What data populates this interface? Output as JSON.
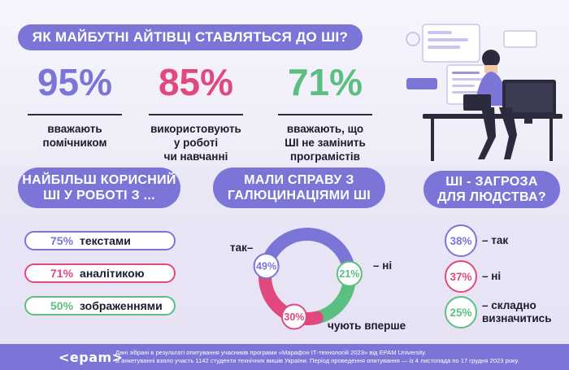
{
  "title": "ЯК МАЙБУТНІ АЙТІВЦІ СТАВЛЯТЬСЯ ДО ШІ?",
  "stats": [
    {
      "value": "95%",
      "caption_lines": [
        "вважають",
        "помічником"
      ],
      "color": "#7c75d8"
    },
    {
      "value": "85%",
      "caption_lines": [
        "використовують",
        "у роботі",
        "чи навчанні"
      ],
      "color": "#e0487e"
    },
    {
      "value": "71%",
      "caption_lines": [
        "вважають, що",
        "ШІ не замінить",
        "програмістів"
      ],
      "color": "#5cbf82"
    }
  ],
  "usage": {
    "heading_lines": [
      "НАЙБІЛЬШ КОРИСНИЙ",
      "ШІ У РОБОТІ З ..."
    ],
    "items": [
      {
        "pct": "75%",
        "label": "текстами"
      },
      {
        "pct": "71%",
        "label": "аналітикою"
      },
      {
        "pct": "50%",
        "label": "зображеннями"
      }
    ]
  },
  "hallucinations": {
    "heading_lines": [
      "МАЛИ СПРАВУ З",
      "ГАЛЮЦИНАЦІЯМИ ШІ"
    ],
    "slices": [
      {
        "pct": "49%",
        "label": "так",
        "value": 49,
        "color": "#7c75d8"
      },
      {
        "pct": "21%",
        "label": "ні",
        "value": 21,
        "color": "#5cbf82"
      },
      {
        "pct": "30%",
        "label": "чують вперше",
        "value": 30,
        "color": "#e0487e"
      }
    ]
  },
  "threat": {
    "heading_lines": [
      "ШІ - ЗАГРОЗА",
      "ДЛЯ ЛЮДСТВА?"
    ],
    "items": [
      {
        "pct": "38%",
        "label_lines": [
          "– так"
        ]
      },
      {
        "pct": "37%",
        "label_lines": [
          "– ні"
        ]
      },
      {
        "pct": "25%",
        "label_lines": [
          "– складно",
          "визначитись"
        ]
      }
    ]
  },
  "footer": {
    "logo": "<epam>",
    "line1": "Дані зібрані в результаті опитування учасників програми «Марафон ІТ-технологій 2023» від EPAM University.",
    "line2": "В анкетуванні взяло участь 1142 студенти технічних вишів України. Період проведення опитування — із 4 листопада по 17 грудня 2023 року."
  },
  "colors": {
    "purple": "#7c75d8",
    "pink": "#e0487e",
    "green": "#5cbf82"
  }
}
